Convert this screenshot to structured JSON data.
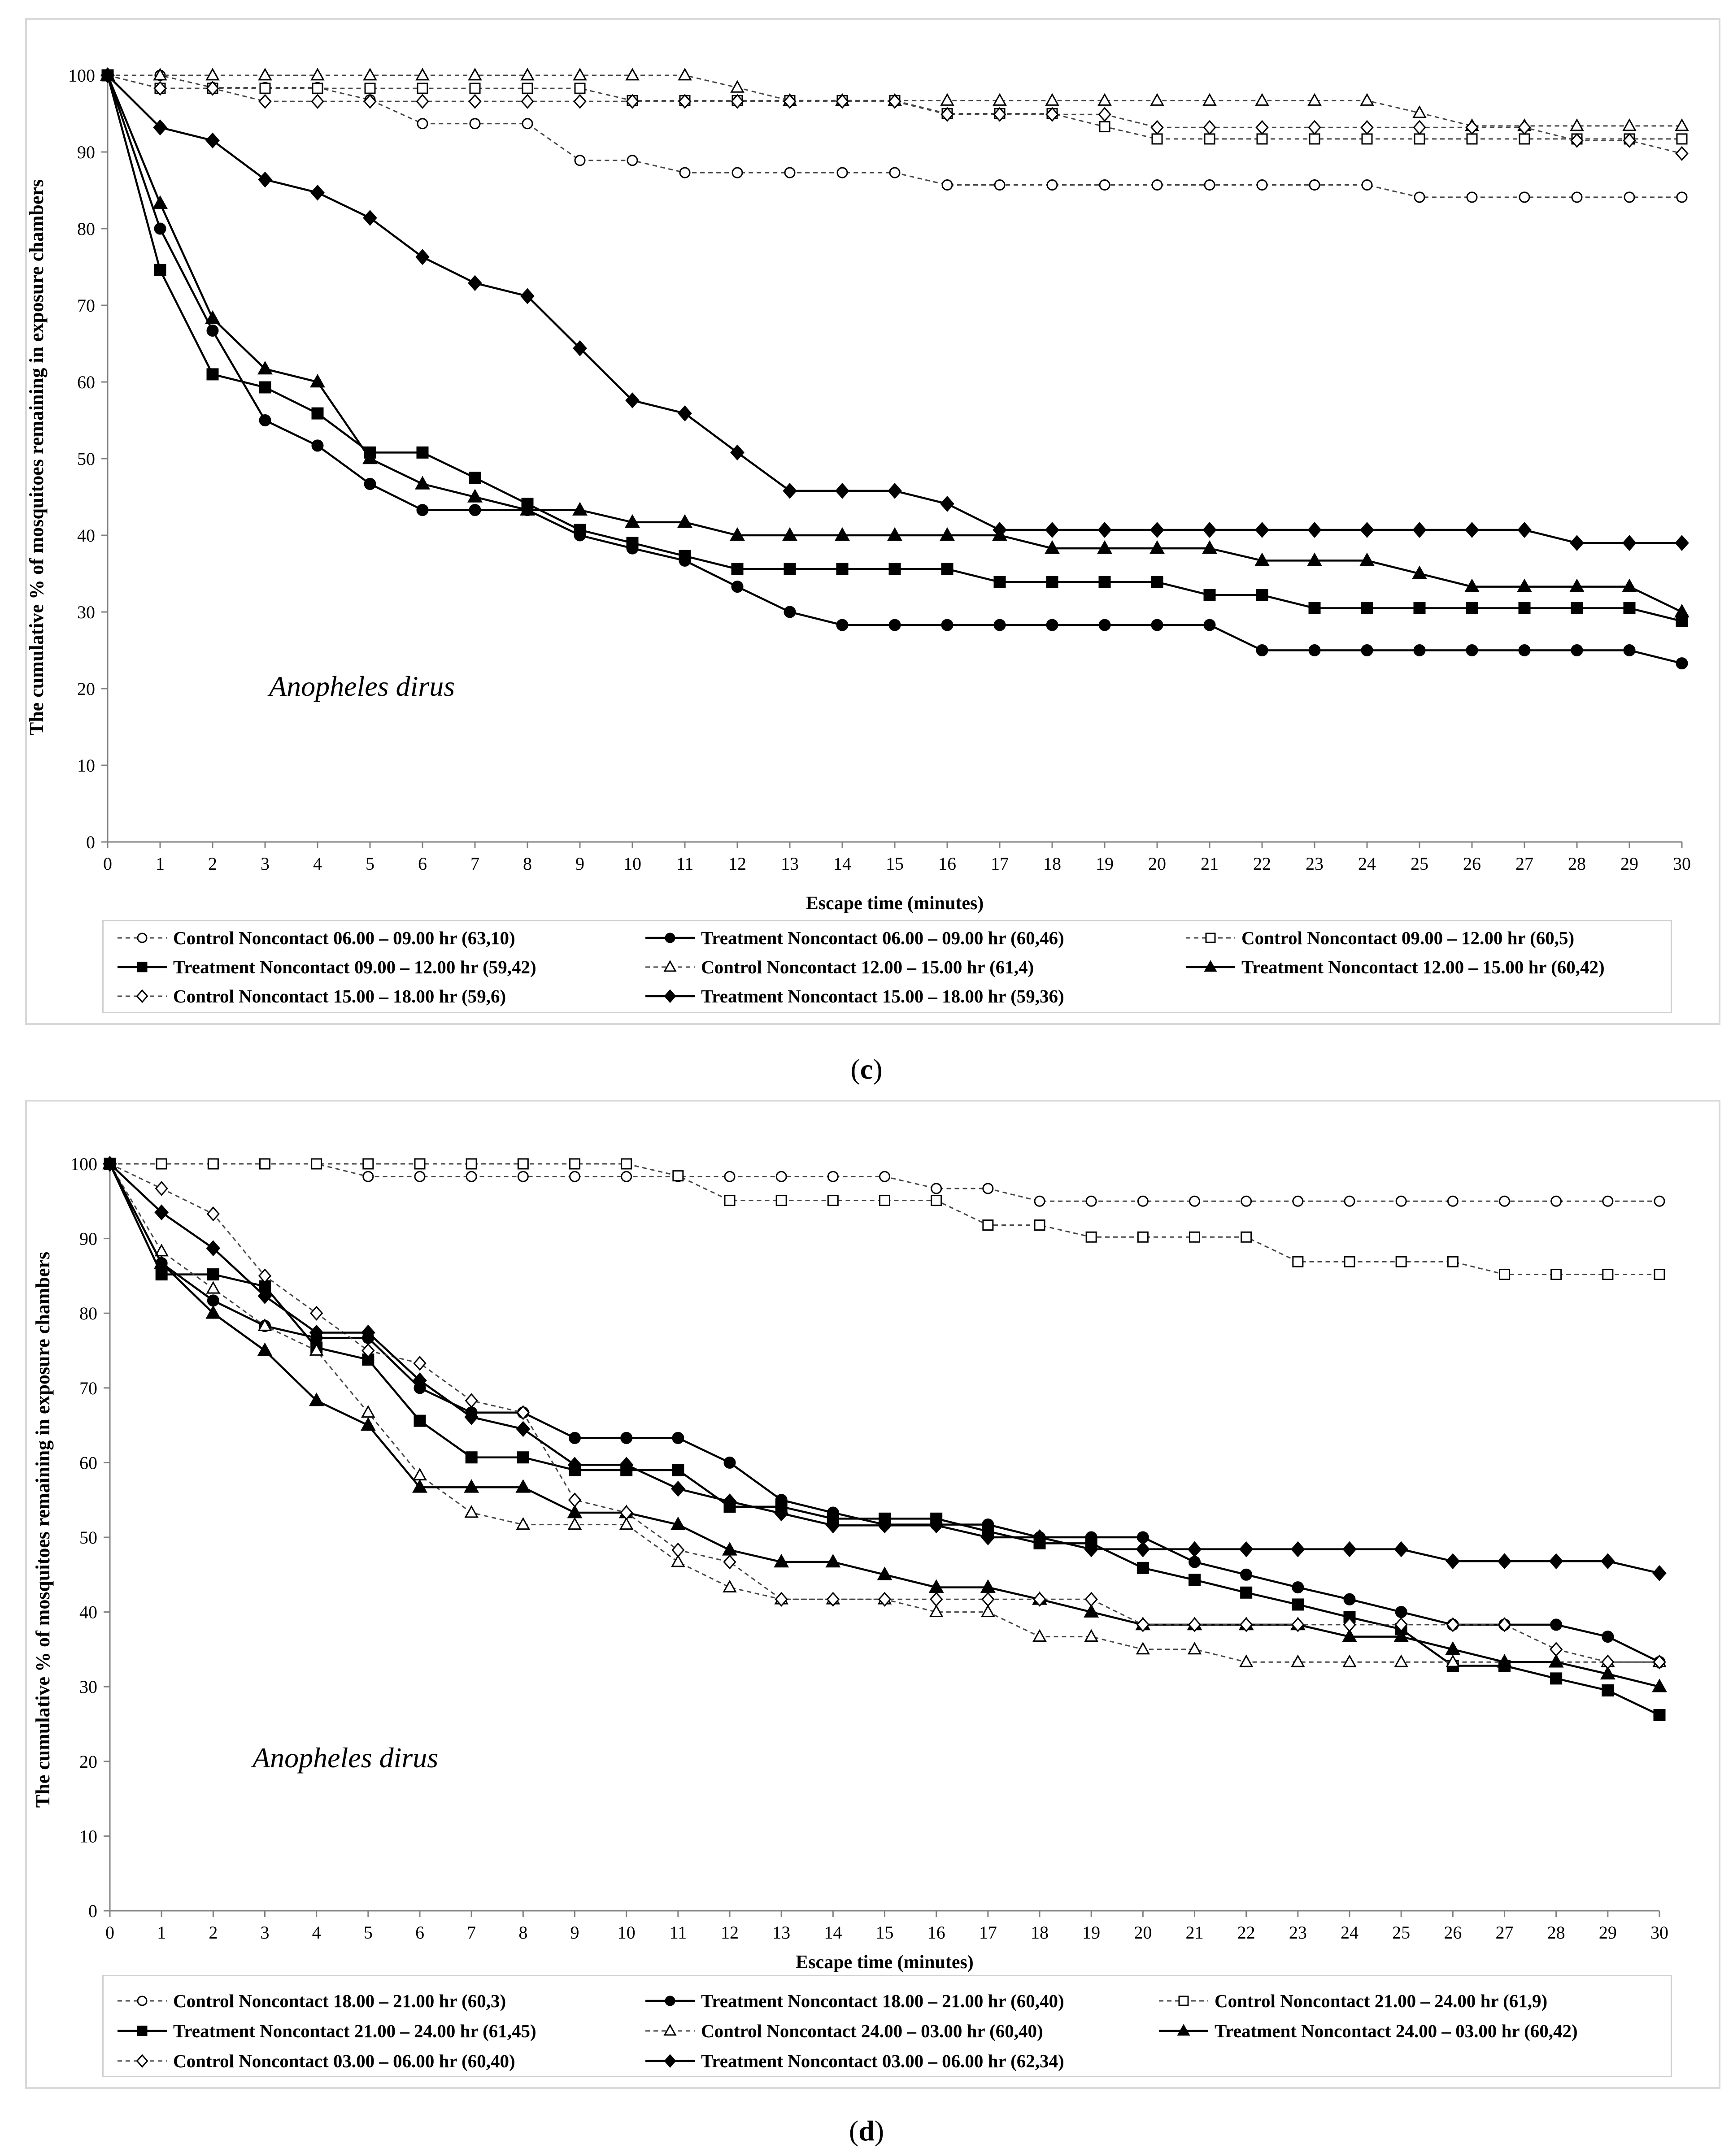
{
  "figure_labels": {
    "c": "c",
    "d": "d"
  },
  "chart_data": [
    {
      "id": "c",
      "type": "line",
      "annotation": "Anopheles dirus",
      "xlabel": "Escape time (minutes)",
      "ylabel": "The cumulative % of mosquitoes remaining in exposure chambers",
      "xlim": [
        0,
        30
      ],
      "ylim": [
        0,
        100
      ],
      "x": [
        0,
        1,
        2,
        3,
        4,
        5,
        6,
        7,
        8,
        9,
        10,
        11,
        12,
        13,
        14,
        15,
        16,
        17,
        18,
        19,
        20,
        21,
        22,
        23,
        24,
        25,
        26,
        27,
        28,
        29,
        30
      ],
      "yticks": [
        0,
        10,
        20,
        30,
        40,
        50,
        60,
        70,
        80,
        90,
        100
      ],
      "grid": false,
      "legend_position": "bottom",
      "series": [
        {
          "name": "Control Noncontact 06.00 – 09.00 hr (63,10)",
          "marker": "circle",
          "filled": false,
          "dashed": true,
          "values": [
            100,
            100,
            98.4,
            98.4,
            98.4,
            96.8,
            93.7,
            93.7,
            93.7,
            88.9,
            88.9,
            87.3,
            87.3,
            87.3,
            87.3,
            87.3,
            85.7,
            85.7,
            85.7,
            85.7,
            85.7,
            85.7,
            85.7,
            85.7,
            85.7,
            84.1,
            84.1,
            84.1,
            84.1,
            84.1,
            84.1
          ]
        },
        {
          "name": "Treatment Noncontact 06.00 – 09.00 hr (60,46)",
          "marker": "circle",
          "filled": true,
          "dashed": false,
          "values": [
            100,
            80,
            66.7,
            55,
            51.7,
            46.7,
            43.3,
            43.3,
            43.3,
            40,
            38.3,
            36.7,
            33.3,
            30,
            28.3,
            28.3,
            28.3,
            28.3,
            28.3,
            28.3,
            28.3,
            28.3,
            25,
            25,
            25,
            25,
            25,
            25,
            25,
            25,
            23.3
          ]
        },
        {
          "name": "Control Noncontact 09.00 – 12.00 hr (60,5)",
          "marker": "square",
          "filled": false,
          "dashed": true,
          "values": [
            100,
            98.3,
            98.3,
            98.3,
            98.3,
            98.3,
            98.3,
            98.3,
            98.3,
            98.3,
            96.7,
            96.7,
            96.7,
            96.7,
            96.7,
            96.7,
            95,
            95,
            95,
            93.3,
            91.7,
            91.7,
            91.7,
            91.7,
            91.7,
            91.7,
            91.7,
            91.7,
            91.7,
            91.7,
            91.7
          ]
        },
        {
          "name": "Treatment Noncontact 09.00 – 12.00 hr (59,42)",
          "marker": "square",
          "filled": true,
          "dashed": false,
          "values": [
            100,
            74.6,
            61,
            59.3,
            55.9,
            50.8,
            50.8,
            47.5,
            44.1,
            40.7,
            39,
            37.3,
            35.6,
            35.6,
            35.6,
            35.6,
            35.6,
            33.9,
            33.9,
            33.9,
            33.9,
            32.2,
            32.2,
            30.5,
            30.5,
            30.5,
            30.5,
            30.5,
            30.5,
            30.5,
            28.8
          ]
        },
        {
          "name": "Control Noncontact 12.00 – 15.00 hr (61,4)",
          "marker": "triangle",
          "filled": false,
          "dashed": true,
          "values": [
            100,
            100,
            100,
            100,
            100,
            100,
            100,
            100,
            100,
            100,
            100,
            100,
            98.4,
            96.7,
            96.7,
            96.7,
            96.7,
            96.7,
            96.7,
            96.7,
            96.7,
            96.7,
            96.7,
            96.7,
            96.7,
            95.1,
            93.4,
            93.4,
            93.4,
            93.4,
            93.4
          ]
        },
        {
          "name": "Treatment Noncontact 12.00 – 15.00 hr (60,42)",
          "marker": "triangle",
          "filled": true,
          "dashed": false,
          "values": [
            100,
            83.3,
            68.3,
            61.7,
            60,
            50,
            46.7,
            45,
            43.3,
            43.3,
            41.7,
            41.7,
            40,
            40,
            40,
            40,
            40,
            40,
            38.3,
            38.3,
            38.3,
            38.3,
            36.7,
            36.7,
            36.7,
            35,
            33.3,
            33.3,
            33.3,
            33.3,
            30
          ]
        },
        {
          "name": "Control Noncontact 15.00 – 18.00 hr (59,6)",
          "marker": "diamond",
          "filled": false,
          "dashed": true,
          "values": [
            100,
            98.3,
            98.3,
            96.6,
            96.6,
            96.6,
            96.6,
            96.6,
            96.6,
            96.6,
            96.6,
            96.6,
            96.6,
            96.6,
            96.6,
            96.6,
            94.9,
            94.9,
            94.9,
            94.9,
            93.2,
            93.2,
            93.2,
            93.2,
            93.2,
            93.2,
            93.2,
            93.2,
            91.5,
            91.5,
            89.8
          ]
        },
        {
          "name": "Treatment Noncontact 15.00 – 18.00 hr (59,36)",
          "marker": "diamond",
          "filled": true,
          "dashed": false,
          "values": [
            100,
            93.2,
            91.5,
            86.4,
            84.7,
            81.4,
            76.3,
            72.9,
            71.2,
            64.4,
            57.6,
            55.9,
            50.8,
            45.8,
            45.8,
            45.8,
            44.1,
            40.7,
            40.7,
            40.7,
            40.7,
            40.7,
            40.7,
            40.7,
            40.7,
            40.7,
            40.7,
            40.7,
            39,
            39,
            39
          ]
        }
      ]
    },
    {
      "id": "d",
      "type": "line",
      "annotation": "Anopheles dirus",
      "xlabel": "Escape time (minutes)",
      "ylabel": "The cumulative % of mosquitoes remaining in exposure chambers",
      "xlim": [
        0,
        30
      ],
      "ylim": [
        0,
        100
      ],
      "x": [
        0,
        1,
        2,
        3,
        4,
        5,
        6,
        7,
        8,
        9,
        10,
        11,
        12,
        13,
        14,
        15,
        16,
        17,
        18,
        19,
        20,
        21,
        22,
        23,
        24,
        25,
        26,
        27,
        28,
        29,
        30
      ],
      "yticks": [
        0,
        10,
        20,
        30,
        40,
        50,
        60,
        70,
        80,
        90,
        100
      ],
      "grid": false,
      "legend_position": "bottom",
      "series": [
        {
          "name": "Control Noncontact 18.00 – 21.00 hr (60,3)",
          "marker": "circle",
          "filled": false,
          "dashed": true,
          "values": [
            100,
            100,
            100,
            100,
            100,
            98.3,
            98.3,
            98.3,
            98.3,
            98.3,
            98.3,
            98.3,
            98.3,
            98.3,
            98.3,
            98.3,
            96.7,
            96.7,
            95,
            95,
            95,
            95,
            95,
            95,
            95,
            95,
            95,
            95,
            95,
            95,
            95
          ]
        },
        {
          "name": "Treatment Noncontact 18.00 – 21.00 hr (60,40)",
          "marker": "circle",
          "filled": true,
          "dashed": false,
          "values": [
            100,
            86.7,
            81.7,
            78.3,
            76.7,
            76.7,
            70,
            66.7,
            66.7,
            63.3,
            63.3,
            63.3,
            60,
            55,
            53.3,
            51.7,
            51.7,
            51.7,
            50,
            50,
            50,
            46.7,
            45,
            43.3,
            41.7,
            40,
            38.3,
            38.3,
            38.3,
            36.7,
            33.3
          ]
        },
        {
          "name": "Control Noncontact 21.00 – 24.00 hr (61,9)",
          "marker": "square",
          "filled": false,
          "dashed": true,
          "values": [
            100,
            100,
            100,
            100,
            100,
            100,
            100,
            100,
            100,
            100,
            100,
            98.4,
            95.1,
            95.1,
            95.1,
            95.1,
            95.1,
            91.8,
            91.8,
            90.2,
            90.2,
            90.2,
            90.2,
            86.9,
            86.9,
            86.9,
            86.9,
            85.2,
            85.2,
            85.2,
            85.2
          ]
        },
        {
          "name": "Treatment Noncontact 21.00 – 24.00 hr (61,45)",
          "marker": "square",
          "filled": true,
          "dashed": false,
          "values": [
            100,
            85.2,
            85.2,
            83.6,
            75.4,
            73.8,
            65.6,
            60.7,
            60.7,
            59,
            59,
            59,
            54.1,
            54.1,
            52.5,
            52.5,
            52.5,
            50.8,
            49.2,
            49.2,
            45.9,
            44.3,
            42.6,
            41,
            39.3,
            37.7,
            32.8,
            32.8,
            31.1,
            29.5,
            26.2
          ]
        },
        {
          "name": "Control Noncontact 24.00 – 03.00 hr (60,40)",
          "marker": "triangle",
          "filled": false,
          "dashed": true,
          "values": [
            100,
            88.3,
            83.3,
            78.3,
            75,
            66.7,
            58.3,
            53.3,
            51.7,
            51.7,
            51.7,
            46.7,
            43.3,
            41.7,
            41.7,
            41.7,
            40,
            40,
            36.7,
            36.7,
            35,
            35,
            33.3,
            33.3,
            33.3,
            33.3,
            33.3,
            33.3,
            33.3,
            33.3,
            33.3
          ]
        },
        {
          "name": "Treatment Noncontact 24.00 – 03.00 hr (60,42)",
          "marker": "triangle",
          "filled": true,
          "dashed": false,
          "values": [
            100,
            86.7,
            80,
            75,
            68.3,
            65,
            56.7,
            56.7,
            56.7,
            53.3,
            53.3,
            51.7,
            48.3,
            46.7,
            46.7,
            45,
            43.3,
            43.3,
            41.7,
            40,
            38.3,
            38.3,
            38.3,
            38.3,
            36.7,
            36.7,
            35,
            33.3,
            33.3,
            31.7,
            30
          ]
        },
        {
          "name": "Control Noncontact 03.00 – 06.00 hr (60,40)",
          "marker": "diamond",
          "filled": false,
          "dashed": true,
          "values": [
            100,
            96.7,
            93.3,
            85,
            80,
            75,
            73.3,
            68.3,
            66.7,
            55,
            53.3,
            48.3,
            46.7,
            41.7,
            41.7,
            41.7,
            41.7,
            41.7,
            41.7,
            41.7,
            38.3,
            38.3,
            38.3,
            38.3,
            38.3,
            38.3,
            38.3,
            38.3,
            35,
            33.3,
            33.3
          ]
        },
        {
          "name": "Treatment Noncontact 03.00 – 06.00 hr (62,34)",
          "marker": "diamond",
          "filled": true,
          "dashed": false,
          "values": [
            100,
            93.5,
            88.7,
            82.3,
            77.4,
            77.4,
            71,
            66.1,
            64.5,
            59.7,
            59.7,
            56.5,
            54.8,
            53.2,
            51.6,
            51.6,
            51.6,
            50,
            50,
            48.4,
            48.4,
            48.4,
            48.4,
            48.4,
            48.4,
            48.4,
            46.8,
            46.8,
            46.8,
            46.8,
            45.2
          ]
        }
      ]
    }
  ]
}
